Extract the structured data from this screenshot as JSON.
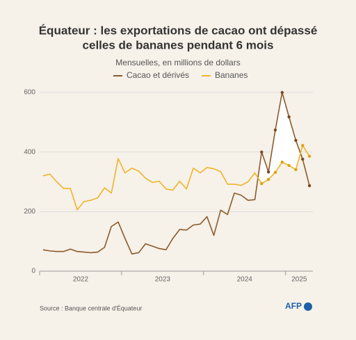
{
  "chart_data": {
    "type": "line",
    "title": [
      "Équateur : les exportations de cacao ont dépassé",
      "celles de bananes pendant 6 mois"
    ],
    "subtitle": "Mensuelles, en millions de dollars",
    "categories": [
      null,
      null,
      null,
      null,
      null,
      null,
      "2022",
      null,
      null,
      null,
      null,
      null,
      null,
      null,
      null,
      null,
      null,
      null,
      "2023",
      null,
      null,
      null,
      null,
      null,
      null,
      null,
      null,
      null,
      null,
      null,
      "2024",
      null,
      null,
      null,
      null,
      null,
      null,
      null,
      "2025",
      null
    ],
    "series": [
      {
        "name": "Cacao et dérivés",
        "color": "#8b5a2b",
        "values": [
          72,
          68,
          66,
          66,
          74,
          66,
          64,
          62,
          64,
          80,
          150,
          165,
          110,
          58,
          62,
          92,
          84,
          76,
          72,
          110,
          140,
          138,
          155,
          158,
          183,
          120,
          205,
          190,
          262,
          255,
          238,
          240,
          400,
          333,
          474,
          600,
          518,
          439,
          376,
          287
        ]
      },
      {
        "name": "Bananes",
        "color": "#f0b429",
        "values": [
          320,
          326,
          300,
          278,
          278,
          206,
          234,
          238,
          246,
          280,
          262,
          378,
          330,
          346,
          336,
          312,
          298,
          302,
          276,
          272,
          302,
          276,
          346,
          330,
          348,
          344,
          334,
          292,
          292,
          288,
          300,
          330,
          294,
          308,
          332,
          366,
          355,
          341,
          422,
          386
        ]
      }
    ],
    "ylim": [
      0,
      600
    ],
    "yticks": [
      0,
      200,
      400,
      600
    ],
    "grid": true,
    "source": "Source : Banque centrale d'Équateur",
    "logo": "AFP"
  }
}
